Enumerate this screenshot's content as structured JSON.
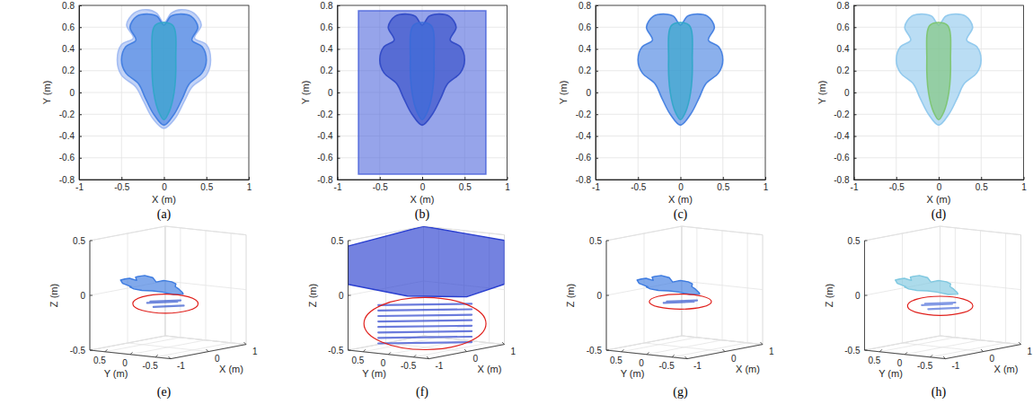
{
  "chart_data": [
    {
      "type": "area",
      "title": "(a)",
      "xlabel": "X (m)",
      "ylabel": "Y (m)",
      "xlim": [
        -1,
        1
      ],
      "ylim": [
        -0.8,
        0.8
      ],
      "xticks": [
        -1,
        -0.5,
        0,
        0.5,
        1
      ],
      "yticks": [
        -0.8,
        -0.6,
        -0.4,
        -0.2,
        0,
        0.2,
        0.4,
        0.6,
        0.8
      ],
      "grid": true,
      "series": [
        {
          "color": "#9db8f2",
          "x": [
            0,
            -0.09,
            -0.2,
            -0.35,
            -0.44,
            -0.36,
            -0.5,
            -0.55,
            -0.5,
            -0.33,
            -0.24,
            -0.13,
            0,
            0.13,
            0.24,
            0.33,
            0.5,
            0.55,
            0.5,
            0.36,
            0.44,
            0.35,
            0.2,
            0.09
          ],
          "values": [
            0.64,
            0.73,
            0.76,
            0.73,
            0.62,
            0.5,
            0.44,
            0.3,
            0.16,
            0.05,
            -0.08,
            -0.24,
            -0.33,
            -0.24,
            -0.08,
            0.05,
            0.16,
            0.3,
            0.44,
            0.5,
            0.62,
            0.73,
            0.76,
            0.73
          ]
        },
        {
          "color": "#3d7be0",
          "x": [
            0,
            -0.08,
            -0.18,
            -0.32,
            -0.4,
            -0.33,
            -0.45,
            -0.5,
            -0.45,
            -0.3,
            -0.22,
            -0.12,
            0,
            0.12,
            0.22,
            0.3,
            0.45,
            0.5,
            0.45,
            0.33,
            0.4,
            0.32,
            0.18,
            0.08
          ],
          "values": [
            0.62,
            0.7,
            0.72,
            0.7,
            0.6,
            0.48,
            0.42,
            0.3,
            0.18,
            0.08,
            -0.05,
            -0.2,
            -0.3,
            -0.2,
            -0.05,
            0.08,
            0.18,
            0.3,
            0.42,
            0.48,
            0.6,
            0.7,
            0.72,
            0.7
          ]
        },
        {
          "color": "#2fa6c8",
          "x": [
            -0.1,
            0.1,
            0.14,
            0.12,
            0.06,
            0,
            -0.06,
            -0.12,
            -0.14
          ],
          "values": [
            0.62,
            0.62,
            0.3,
            0,
            -0.18,
            -0.25,
            -0.18,
            0,
            0.3
          ]
        }
      ]
    },
    {
      "type": "area",
      "title": "(b)",
      "xlabel": "X (m)",
      "ylabel": "Y (m)",
      "xlim": [
        -1,
        1
      ],
      "ylim": [
        -0.8,
        0.8
      ],
      "xticks": [
        -1,
        -0.5,
        0,
        0.5,
        1
      ],
      "yticks": [
        -0.8,
        -0.6,
        -0.4,
        -0.2,
        0,
        0.2,
        0.4,
        0.6,
        0.8
      ],
      "grid": true,
      "series": [
        {
          "color": "#5068dc",
          "x": [
            -0.75,
            0.75,
            0.75,
            -0.75
          ],
          "values": [
            0.75,
            0.75,
            -0.75,
            -0.75
          ]
        },
        {
          "color": "#2d47c4",
          "x": [
            0,
            -0.08,
            -0.18,
            -0.32,
            -0.4,
            -0.33,
            -0.45,
            -0.5,
            -0.45,
            -0.3,
            -0.22,
            -0.12,
            0,
            0.12,
            0.22,
            0.3,
            0.45,
            0.5,
            0.45,
            0.33,
            0.4,
            0.32,
            0.18,
            0.08
          ],
          "values": [
            0.62,
            0.7,
            0.72,
            0.7,
            0.6,
            0.48,
            0.42,
            0.3,
            0.18,
            0.08,
            -0.05,
            -0.2,
            -0.3,
            -0.2,
            -0.05,
            0.08,
            0.18,
            0.3,
            0.42,
            0.48,
            0.6,
            0.7,
            0.72,
            0.7
          ]
        },
        {
          "color": "#3a6ad8",
          "x": [
            -0.1,
            0.1,
            0.14,
            0.12,
            0.06,
            0,
            -0.06,
            -0.12,
            -0.14
          ],
          "values": [
            0.62,
            0.62,
            0.3,
            0,
            -0.18,
            -0.25,
            -0.18,
            0,
            0.3
          ]
        }
      ]
    },
    {
      "type": "area",
      "title": "(c)",
      "xlabel": "X (m)",
      "ylabel": "Y (m)",
      "xlim": [
        -1,
        1
      ],
      "ylim": [
        -0.8,
        0.8
      ],
      "xticks": [
        -1,
        -0.5,
        0,
        0.5,
        1
      ],
      "yticks": [
        -0.8,
        -0.6,
        -0.4,
        -0.2,
        0,
        0.2,
        0.4,
        0.6,
        0.8
      ],
      "grid": true,
      "series": [
        {
          "color": "#3d7be0",
          "x": [
            0,
            -0.08,
            -0.18,
            -0.32,
            -0.4,
            -0.33,
            -0.45,
            -0.5,
            -0.45,
            -0.3,
            -0.22,
            -0.12,
            0,
            0.12,
            0.22,
            0.3,
            0.45,
            0.5,
            0.45,
            0.33,
            0.4,
            0.32,
            0.18,
            0.08
          ],
          "values": [
            0.62,
            0.7,
            0.72,
            0.7,
            0.6,
            0.48,
            0.42,
            0.3,
            0.18,
            0.08,
            -0.05,
            -0.2,
            -0.3,
            -0.2,
            -0.05,
            0.08,
            0.18,
            0.3,
            0.42,
            0.48,
            0.6,
            0.7,
            0.72,
            0.7
          ]
        },
        {
          "color": "#2fa6c8",
          "x": [
            -0.1,
            0.1,
            0.14,
            0.12,
            0.06,
            0,
            -0.06,
            -0.12,
            -0.14
          ],
          "values": [
            0.62,
            0.62,
            0.3,
            0,
            -0.18,
            -0.25,
            -0.18,
            0,
            0.3
          ]
        }
      ]
    },
    {
      "type": "area",
      "title": "(d)",
      "xlabel": "X (m)",
      "ylabel": "Y (m)",
      "xlim": [
        -1,
        1
      ],
      "ylim": [
        -0.8,
        0.8
      ],
      "xticks": [
        -1,
        -0.5,
        0,
        0.5,
        1
      ],
      "yticks": [
        -0.8,
        -0.6,
        -0.4,
        -0.2,
        0,
        0.2,
        0.4,
        0.6,
        0.8
      ],
      "grid": true,
      "series": [
        {
          "color": "#8cc6ec",
          "x": [
            0,
            -0.08,
            -0.18,
            -0.32,
            -0.4,
            -0.33,
            -0.45,
            -0.5,
            -0.45,
            -0.3,
            -0.22,
            -0.12,
            0,
            0.12,
            0.22,
            0.3,
            0.45,
            0.5,
            0.45,
            0.33,
            0.4,
            0.32,
            0.18,
            0.08
          ],
          "values": [
            0.62,
            0.7,
            0.72,
            0.7,
            0.6,
            0.48,
            0.42,
            0.3,
            0.18,
            0.08,
            -0.05,
            -0.2,
            -0.3,
            -0.2,
            -0.05,
            0.08,
            0.18,
            0.3,
            0.42,
            0.48,
            0.6,
            0.7,
            0.72,
            0.7
          ]
        },
        {
          "color": "#7cc46e",
          "x": [
            -0.1,
            0.1,
            0.14,
            0.12,
            0.06,
            0,
            -0.06,
            -0.12,
            -0.14
          ],
          "values": [
            0.62,
            0.62,
            0.3,
            0,
            -0.18,
            -0.25,
            -0.18,
            0,
            0.3
          ]
        }
      ]
    },
    {
      "type": "area3d",
      "title": "(e)",
      "xlabel": "X (m)",
      "ylabel": "Y (m)",
      "zlabel": "Z (m)",
      "xlim": [
        -1,
        1
      ],
      "ylim": [
        -0.8,
        0.8
      ],
      "zlim": [
        -0.5,
        0.5
      ],
      "xticks": [
        -1,
        0,
        1
      ],
      "yticks": [
        -0.5,
        0,
        0.5
      ],
      "zticks": [
        -0.5,
        0,
        0.5
      ],
      "grid": true,
      "series": [
        {
          "type": "area",
          "color": "#3d7be0",
          "x": [
            0,
            -0.08,
            -0.18,
            -0.32,
            -0.4,
            -0.33,
            -0.45,
            -0.5,
            -0.45,
            -0.3,
            -0.22,
            -0.12,
            0,
            0.12,
            0.22,
            0.3,
            0.45,
            0.5,
            0.45,
            0.33,
            0.4,
            0.32,
            0.18,
            0.08
          ],
          "y": [
            0.62,
            0.7,
            0.72,
            0.7,
            0.6,
            0.48,
            0.42,
            0.3,
            0.18,
            0.08,
            -0.05,
            -0.2,
            -0.3,
            -0.2,
            -0.05,
            0.08,
            0.18,
            0.3,
            0.42,
            0.48,
            0.6,
            0.7,
            0.72,
            0.7
          ],
          "values": [
            0.08,
            0.1,
            0.1,
            0.1,
            0.08,
            0.05,
            0.06,
            0.05,
            0.04,
            0.03,
            0.02,
            0,
            0,
            0,
            0.02,
            0.03,
            0.04,
            0.05,
            0.06,
            0.05,
            0.08,
            0.1,
            0.1,
            0.1
          ]
        },
        {
          "type": "line",
          "color": "#3f5fd0",
          "x": [
            -0.2,
            0.2,
            null,
            -0.25,
            0.15,
            null,
            -0.15,
            0.25
          ],
          "y": [
            0.2,
            -0.1,
            null,
            0.1,
            -0.2,
            null,
            0.3,
            0
          ],
          "values": [
            -0.08,
            -0.08,
            null,
            -0.12,
            -0.12,
            null,
            -0.1,
            -0.1
          ]
        }
      ]
    },
    {
      "type": "area3d",
      "title": "(f)",
      "xlabel": "X (m)",
      "ylabel": "Y (m)",
      "zlabel": "Z (m)",
      "xlim": [
        -1,
        1
      ],
      "ylim": [
        -0.8,
        0.8
      ],
      "zlim": [
        -0.5,
        0.5
      ],
      "xticks": [
        -1,
        0,
        1
      ],
      "yticks": [
        -0.5,
        0,
        0.5
      ],
      "zticks": [
        -0.5,
        0,
        0.5
      ],
      "grid": true,
      "series": [
        {
          "type": "area",
          "color": "#2a3fd0",
          "x": [
            -1,
            -1,
            1,
            1,
            1,
            0,
            -0.5
          ],
          "y": [
            0.8,
            0.8,
            0.8,
            -0.8,
            -0.8,
            -0.8,
            0
          ],
          "values": [
            0.1,
            0.45,
            0.5,
            0.45,
            0.05,
            0,
            0
          ]
        },
        {
          "type": "line",
          "color": "#3a4fd0",
          "x": [
            -0.6,
            0.4,
            null,
            -0.6,
            0.4,
            null,
            -0.6,
            0.4,
            null,
            -0.6,
            0.4,
            null,
            -0.6,
            0.4,
            null,
            -0.6,
            0.4,
            null,
            -0.6,
            0.4,
            null,
            -0.6,
            0.4
          ],
          "y": [
            0.5,
            -0.6,
            null,
            0.5,
            -0.6,
            null,
            0.5,
            -0.6,
            null,
            0.5,
            -0.6,
            null,
            0.5,
            -0.6,
            null,
            0.5,
            -0.6,
            null,
            0.5,
            -0.6,
            null,
            0.5,
            -0.6
          ],
          "values": [
            -0.1,
            -0.1,
            null,
            -0.15,
            -0.15,
            null,
            -0.2,
            -0.2,
            null,
            -0.25,
            -0.25,
            null,
            -0.3,
            -0.3,
            null,
            -0.35,
            -0.35,
            null,
            -0.4,
            -0.4,
            null,
            -0.45,
            -0.45
          ]
        }
      ]
    },
    {
      "type": "area3d",
      "title": "(g)",
      "xlabel": "X (m)",
      "ylabel": "Y (m)",
      "zlabel": "Z (m)",
      "xlim": [
        -1,
        1
      ],
      "ylim": [
        -0.8,
        0.8
      ],
      "zlim": [
        -0.5,
        0.5
      ],
      "xticks": [
        -1,
        0,
        1
      ],
      "yticks": [
        -0.5,
        0,
        0.5
      ],
      "zticks": [
        -0.5,
        0,
        0.5
      ],
      "grid": true,
      "series": [
        {
          "type": "area",
          "color": "#3d7be0",
          "x": [
            0,
            -0.08,
            -0.18,
            -0.32,
            -0.4,
            -0.33,
            -0.45,
            -0.5,
            -0.45,
            -0.3,
            -0.22,
            -0.12,
            0,
            0.12,
            0.22,
            0.3,
            0.45,
            0.5,
            0.45,
            0.33,
            0.4,
            0.32,
            0.18,
            0.08
          ],
          "y": [
            0.62,
            0.7,
            0.72,
            0.7,
            0.6,
            0.48,
            0.42,
            0.3,
            0.18,
            0.08,
            -0.05,
            -0.2,
            -0.3,
            -0.2,
            -0.05,
            0.08,
            0.18,
            0.3,
            0.42,
            0.48,
            0.6,
            0.7,
            0.72,
            0.7
          ],
          "values": [
            0.08,
            0.1,
            0.1,
            0.1,
            0.08,
            0.05,
            0.06,
            0.05,
            0.04,
            0.03,
            0.02,
            0,
            0,
            0,
            0.02,
            0.03,
            0.04,
            0.05,
            0.06,
            0.05,
            0.08,
            0.1,
            0.1,
            0.1
          ]
        },
        {
          "type": "line",
          "color": "#3f5fd0",
          "x": [
            -0.2,
            0.2,
            null,
            -0.15,
            0.25
          ],
          "y": [
            0.2,
            -0.1,
            null,
            0.3,
            0
          ],
          "values": [
            -0.08,
            -0.08,
            null,
            -0.1,
            -0.1
          ]
        }
      ]
    },
    {
      "type": "area3d",
      "title": "(h)",
      "xlabel": "X (m)",
      "ylabel": "Y (m)",
      "zlabel": "Z (m)",
      "xlim": [
        -1,
        1
      ],
      "ylim": [
        -0.8,
        0.8
      ],
      "zlim": [
        -0.5,
        0.5
      ],
      "xticks": [
        -1,
        0,
        1
      ],
      "yticks": [
        -0.5,
        0,
        0.5
      ],
      "zticks": [
        -0.5,
        0,
        0.5
      ],
      "grid": true,
      "series": [
        {
          "type": "area",
          "color": "#7fc8e0",
          "x": [
            0,
            -0.08,
            -0.18,
            -0.32,
            -0.4,
            -0.33,
            -0.45,
            -0.5,
            -0.45,
            -0.3,
            -0.22,
            -0.12,
            0,
            0.12,
            0.22,
            0.3,
            0.45,
            0.5,
            0.45,
            0.33,
            0.4,
            0.32,
            0.18,
            0.08
          ],
          "y": [
            0.62,
            0.7,
            0.72,
            0.7,
            0.6,
            0.48,
            0.42,
            0.3,
            0.18,
            0.08,
            -0.05,
            -0.2,
            -0.3,
            -0.2,
            -0.05,
            0.08,
            0.18,
            0.3,
            0.42,
            0.48,
            0.6,
            0.7,
            0.72,
            0.7
          ],
          "values": [
            0.08,
            0.1,
            0.1,
            0.1,
            0.08,
            0.05,
            0.06,
            0.05,
            0.04,
            0.03,
            0.02,
            0,
            0,
            0,
            0.02,
            0.03,
            0.04,
            0.05,
            0.06,
            0.05,
            0.08,
            0.1,
            0.1,
            0.1
          ]
        },
        {
          "type": "line",
          "color": "#5a78dc",
          "x": [
            -0.2,
            0.2,
            null,
            -0.25,
            0.15,
            null,
            -0.15,
            0.25
          ],
          "y": [
            0.2,
            -0.1,
            null,
            0.1,
            -0.2,
            null,
            0.3,
            0
          ],
          "values": [
            -0.1,
            -0.1,
            null,
            -0.14,
            -0.14,
            null,
            -0.12,
            -0.12
          ]
        }
      ]
    }
  ]
}
